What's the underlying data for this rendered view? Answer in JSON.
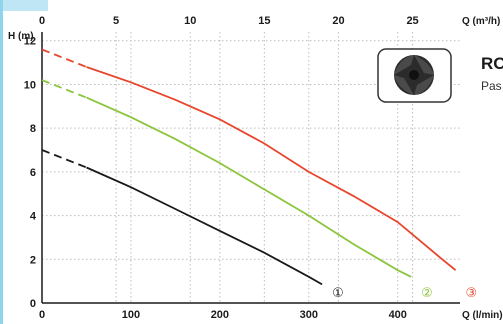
{
  "chart_data": {
    "type": "line",
    "title": "",
    "ylabel": "H (m)",
    "xlabel_top": "Q (m³/h)",
    "xlabel_bottom": "Q (l/min)",
    "x_bottom_ticks": [
      0,
      100,
      200,
      300,
      400
    ],
    "x_top_ticks": [
      0,
      5,
      10,
      15,
      20,
      25
    ],
    "y_ticks": [
      0,
      2,
      4,
      6,
      8,
      10,
      12
    ],
    "xlim": [
      0,
      470
    ],
    "ylim": [
      0,
      12.4
    ],
    "grid": true,
    "series": [
      {
        "name": "①",
        "color": "#1a1a1a",
        "dashed_until": 50,
        "x": [
          0,
          50,
          100,
          150,
          200,
          250,
          300,
          315
        ],
        "y": [
          7.0,
          6.2,
          5.3,
          4.3,
          3.3,
          2.3,
          1.2,
          0.85
        ]
      },
      {
        "name": "②",
        "color": "#8cc43c",
        "dashed_until": 50,
        "x": [
          0,
          50,
          100,
          150,
          200,
          250,
          300,
          350,
          400,
          415
        ],
        "y": [
          10.2,
          9.4,
          8.5,
          7.5,
          6.4,
          5.2,
          4.0,
          2.7,
          1.5,
          1.2
        ]
      },
      {
        "name": "③",
        "color": "#e8452c",
        "dashed_until": 50,
        "x": [
          0,
          50,
          100,
          150,
          200,
          250,
          300,
          350,
          400,
          450,
          465
        ],
        "y": [
          11.6,
          10.8,
          10.1,
          9.3,
          8.4,
          7.3,
          6.0,
          4.9,
          3.7,
          2.0,
          1.5
        ]
      }
    ]
  },
  "side": {
    "title": "RO",
    "subtitle": "Pas"
  },
  "colors": {
    "border": "#8fd3ec",
    "tab": "#bfe6f5",
    "grid": "#bdbdbd"
  }
}
